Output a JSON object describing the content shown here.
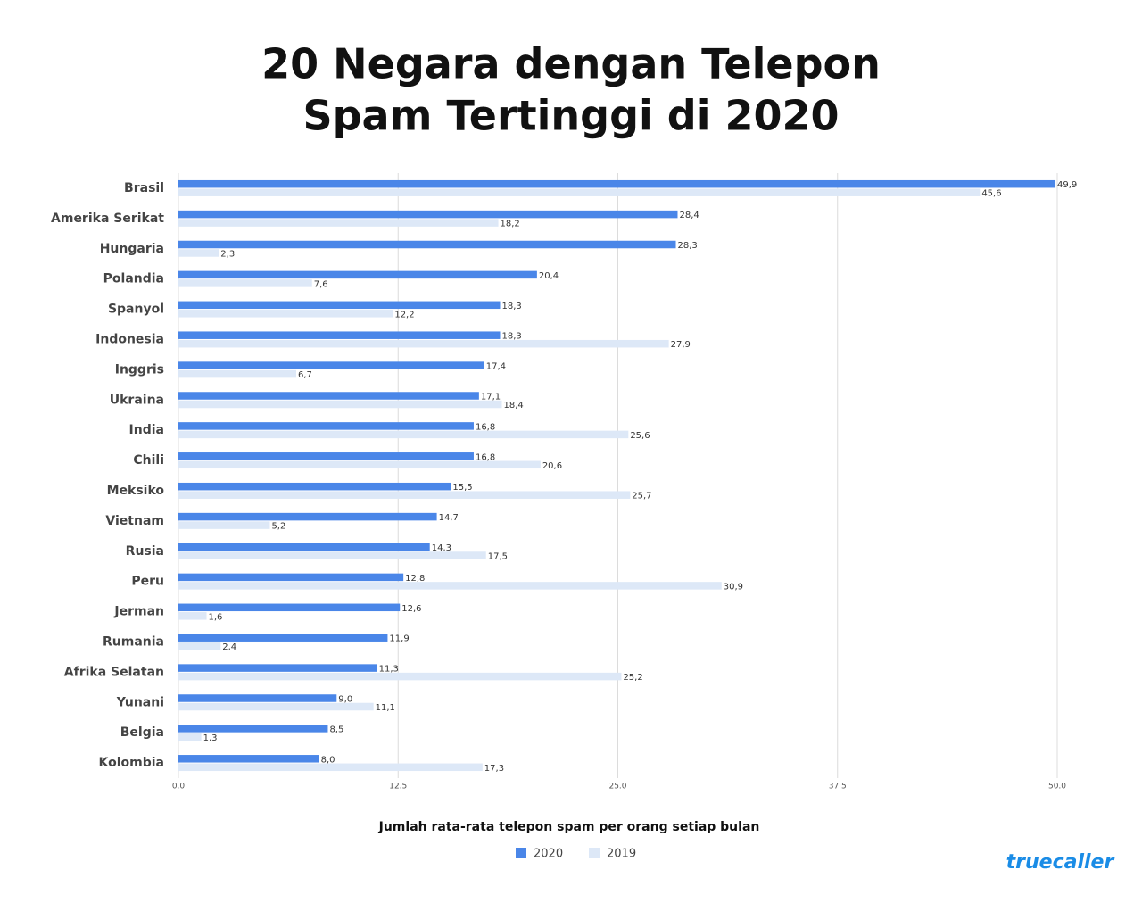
{
  "chart_data": {
    "type": "hbar",
    "title": [
      "20 Negara dengan Telepon",
      "Spam Tertinggi di 2020"
    ],
    "x_label": "Jumlah rata-rata telepon spam per orang setiap bulan",
    "brand": "truecaller",
    "categories": [
      "Brasil",
      "Amerika Serikat",
      "Hungaria",
      "Polandia",
      "Spanyol",
      "Indonesia",
      "Inggris",
      "Ukraina",
      "India",
      "Chili",
      "Meksiko",
      "Vietnam",
      "Rusia",
      "Peru",
      "Jerman",
      "Rumania",
      "Afrika Selatan",
      "Yunani",
      "Belgia",
      "Kolombia"
    ],
    "series": [
      {
        "name": "2020",
        "color": "#4a86e8",
        "values": [
          49.9,
          28.4,
          28.3,
          20.4,
          18.3,
          18.3,
          17.4,
          17.1,
          16.8,
          16.8,
          15.5,
          14.7,
          14.3,
          12.8,
          12.6,
          11.9,
          11.3,
          9.0,
          8.5,
          8.0
        ],
        "value_labels": [
          "49,9",
          "28,4",
          "28,3",
          "20,4",
          "18,3",
          "18,3",
          "17,4",
          "17,1",
          "16,8",
          "16,8",
          "15,5",
          "14,7",
          "14,3",
          "12,8",
          "12,6",
          "11,9",
          "11,3",
          "9,0",
          "8,5",
          "8,0"
        ]
      },
      {
        "name": "2019",
        "color": "#dde8f7",
        "values": [
          45.6,
          18.2,
          2.3,
          7.6,
          12.2,
          27.9,
          6.7,
          18.4,
          25.6,
          20.6,
          25.7,
          5.2,
          17.5,
          30.9,
          1.6,
          2.4,
          25.2,
          11.1,
          1.3,
          17.3
        ],
        "value_labels": [
          "45,6",
          "18,2",
          "2,3",
          "7,6",
          "12,2",
          "27,9",
          "6,7",
          "18,4",
          "25,6",
          "20,6",
          "25,7",
          "5,2",
          "17,5",
          "30,9",
          "1,6",
          "2,4",
          "25,2",
          "11,1",
          "1,3",
          "17,3"
        ]
      }
    ],
    "xlim": [
      0,
      50
    ],
    "xticks": [
      {
        "value": 0,
        "label": "0.0"
      },
      12.5,
      {
        "value": 25,
        "label": "25.0"
      },
      37.5,
      {
        "value": 50,
        "label": "50.0"
      }
    ],
    "grid": true
  }
}
